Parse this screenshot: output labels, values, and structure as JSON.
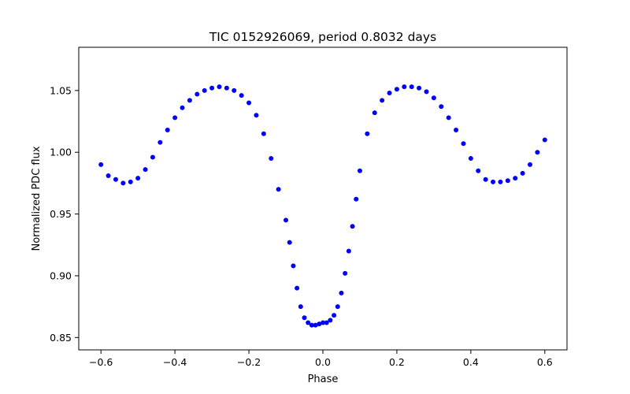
{
  "chart_data": {
    "type": "scatter",
    "title": "TIC 0152926069, period 0.8032 days",
    "xlabel": "Phase",
    "ylabel": "Normalized PDC flux",
    "xlim": [
      -0.66,
      0.66
    ],
    "ylim": [
      0.84,
      1.085
    ],
    "xticks": [
      -0.6,
      -0.4,
      -0.2,
      0.0,
      0.2,
      0.4,
      0.6
    ],
    "xtick_labels": [
      "−0.6",
      "−0.4",
      "−0.2",
      "0.0",
      "0.2",
      "0.4",
      "0.6"
    ],
    "yticks": [
      0.85,
      0.9,
      0.95,
      1.0,
      1.05
    ],
    "ytick_labels": [
      "0.85",
      "0.90",
      "0.95",
      "1.00",
      "1.05"
    ],
    "grid": false,
    "legend": "none",
    "marker_color": "#0000ff",
    "series": [
      {
        "x": [
          -0.6,
          -0.58,
          -0.56,
          -0.54,
          -0.52,
          -0.5,
          -0.48,
          -0.46,
          -0.44,
          -0.42,
          -0.4,
          -0.38,
          -0.36,
          -0.34,
          -0.32,
          -0.3,
          -0.28,
          -0.26,
          -0.24,
          -0.22,
          -0.2,
          -0.18,
          -0.16,
          -0.14,
          -0.12,
          -0.1,
          -0.09,
          -0.08,
          -0.07,
          -0.06,
          -0.05,
          -0.04,
          -0.03,
          -0.02,
          -0.01,
          0.0,
          0.01,
          0.02,
          0.03,
          0.04,
          0.05,
          0.06,
          0.07,
          0.08,
          0.09,
          0.1,
          0.12,
          0.14,
          0.16,
          0.18,
          0.2,
          0.22,
          0.24,
          0.26,
          0.28,
          0.3,
          0.32,
          0.34,
          0.36,
          0.38,
          0.4,
          0.42,
          0.44,
          0.46,
          0.48,
          0.5,
          0.52,
          0.54,
          0.56,
          0.58,
          0.6
        ],
        "y": [
          0.99,
          0.981,
          0.978,
          0.975,
          0.976,
          0.979,
          0.986,
          0.996,
          1.008,
          1.018,
          1.028,
          1.036,
          1.042,
          1.047,
          1.05,
          1.052,
          1.053,
          1.052,
          1.05,
          1.046,
          1.04,
          1.03,
          1.015,
          0.995,
          0.97,
          0.945,
          0.927,
          0.908,
          0.89,
          0.875,
          0.866,
          0.862,
          0.86,
          0.86,
          0.861,
          0.862,
          0.862,
          0.864,
          0.868,
          0.875,
          0.886,
          0.902,
          0.92,
          0.94,
          0.962,
          0.985,
          1.015,
          1.032,
          1.042,
          1.048,
          1.051,
          1.053,
          1.053,
          1.052,
          1.049,
          1.044,
          1.037,
          1.028,
          1.018,
          1.007,
          0.995,
          0.985,
          0.978,
          0.976,
          0.976,
          0.977,
          0.979,
          0.983,
          0.99,
          1.0,
          1.01
        ]
      }
    ]
  }
}
